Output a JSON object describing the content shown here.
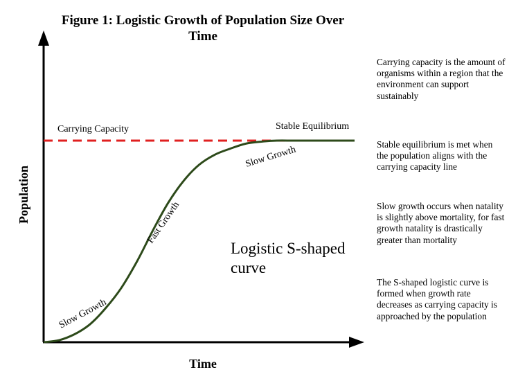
{
  "chart_data": {
    "type": "line",
    "title_lines": [
      "Figure 1: Logistic Growth of Population Size  Over",
      "Time"
    ],
    "xlabel": "Time",
    "ylabel": "Population",
    "grid": false,
    "legend": "none",
    "axis_ticks": "none",
    "series": [
      {
        "label": "Logistic S-shaped curve",
        "color": "#2d4a1a",
        "x": [
          0,
          0.05,
          0.1,
          0.15,
          0.2,
          0.25,
          0.3,
          0.35,
          0.4,
          0.45,
          0.5,
          0.55,
          0.6,
          0.65,
          0.7,
          0.75,
          0.8,
          0.85,
          0.9,
          0.95,
          1.0
        ],
        "y": [
          0.0,
          0.01,
          0.04,
          0.09,
          0.17,
          0.27,
          0.4,
          0.55,
          0.69,
          0.8,
          0.88,
          0.93,
          0.96,
          0.985,
          0.995,
          1.0,
          1.0,
          1.0,
          1.0,
          1.0,
          1.0
        ]
      }
    ],
    "reference_lines": [
      {
        "label": "Carrying Capacity",
        "y": 1.0,
        "style": "dashed",
        "color": "#e02020"
      }
    ],
    "curve_annotations": [
      {
        "text": "Slow Growth",
        "x": 0.1
      },
      {
        "text": "Fast Growth",
        "x": 0.38
      },
      {
        "text": "Slow Growth",
        "x": 0.68
      }
    ],
    "point_annotations": [
      {
        "text": "Stable Equilibrium",
        "x": 0.75,
        "y": 1.0
      }
    ],
    "big_label_lines": [
      "Logistic S-shaped",
      "curve"
    ]
  },
  "side_notes": [
    "Carrying capacity is the amount of organisms within a region that the environment can support sustainably",
    "Stable equilibrium is met when the population aligns with the carrying capacity line",
    "Slow growth occurs when natality is slightly above mortality, for fast growth natality is drastically greater than mortality",
    "The S-shaped logistic curve is formed when growth rate decreases as carrying capacity is approached by the population"
  ]
}
